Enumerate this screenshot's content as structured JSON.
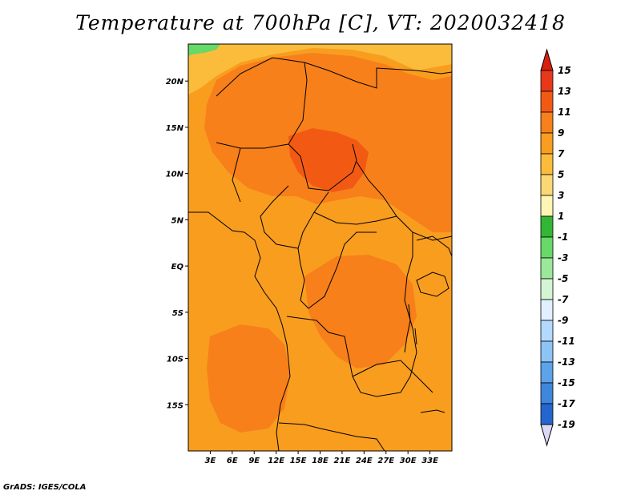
{
  "title": "Temperature at 700hPa [C], VT: 2020032418",
  "credit": "GrADS: IGES/COLA",
  "map": {
    "lon_range": [
      0,
      36
    ],
    "lat_range": [
      -20,
      24
    ],
    "lat_ticks": [
      {
        "value": 20,
        "label": "20N"
      },
      {
        "value": 15,
        "label": "15N"
      },
      {
        "value": 10,
        "label": "10N"
      },
      {
        "value": 5,
        "label": "5N"
      },
      {
        "value": 0,
        "label": "EQ"
      },
      {
        "value": -5,
        "label": "5S"
      },
      {
        "value": -10,
        "label": "10S"
      },
      {
        "value": -15,
        "label": "15S"
      }
    ],
    "lon_ticks": [
      {
        "value": 3,
        "label": "3E"
      },
      {
        "value": 6,
        "label": "6E"
      },
      {
        "value": 9,
        "label": "9E"
      },
      {
        "value": 12,
        "label": "12E"
      },
      {
        "value": 15,
        "label": "15E"
      },
      {
        "value": 18,
        "label": "18E"
      },
      {
        "value": 21,
        "label": "21E"
      },
      {
        "value": 24,
        "label": "24E"
      },
      {
        "value": 27,
        "label": "27E"
      },
      {
        "value": 30,
        "label": "30E"
      },
      {
        "value": 33,
        "label": "33E"
      }
    ]
  },
  "colorbar": {
    "labels": [
      "15",
      "13",
      "11",
      "9",
      "7",
      "5",
      "3",
      "1",
      "-1",
      "-3",
      "-5",
      "-7",
      "-9",
      "-11",
      "-13",
      "-15",
      "-17",
      "-19"
    ],
    "colors": [
      "#e8381a",
      "#f25a14",
      "#f7801a",
      "#f99d1f",
      "#fbbc3c",
      "#fcd875",
      "#fff5b4",
      "#33b633",
      "#66d966",
      "#9be89b",
      "#d4f5d4",
      "#e1f0ff",
      "#b4d9ff",
      "#8ec3f5",
      "#5ca3ea",
      "#3f86dd",
      "#2466cf",
      "#0f44b5",
      "#0a2590",
      "#1a0a66"
    ],
    "top_color": "#d8200e",
    "bottom_color": "#dcd8f5"
  },
  "field": {
    "base_color": "#f99d1f",
    "regions": [
      {
        "name": "sahara-warm",
        "color": "#f7801a"
      },
      {
        "name": "chad-hot",
        "color": "#f25a14"
      },
      {
        "name": "sudan-warm",
        "color": "#f7801a"
      },
      {
        "name": "congo-warm",
        "color": "#f7801a"
      },
      {
        "name": "angola-warm",
        "color": "#f7801a"
      },
      {
        "name": "north-cool",
        "color": "#fbbc3c"
      },
      {
        "name": "northwest-green",
        "color": "#66d966"
      }
    ]
  }
}
